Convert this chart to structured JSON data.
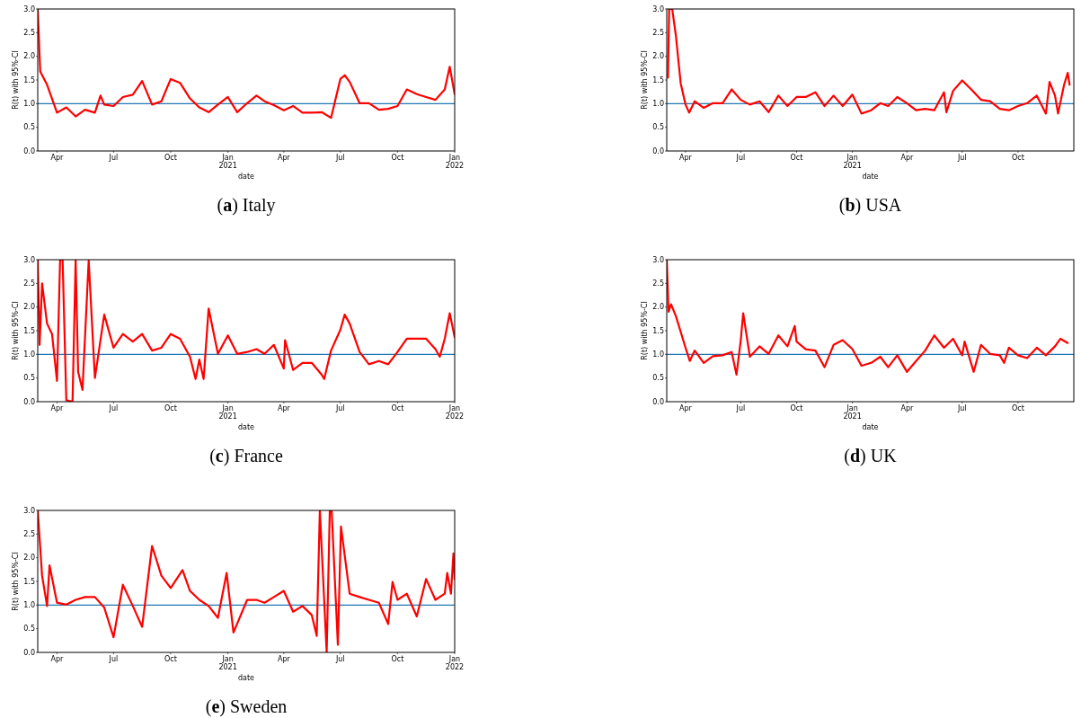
{
  "chart_data": [
    {
      "type": "line",
      "title": "(a) Italy",
      "xlabel": "date",
      "ylabel": "R(t) with 95%-CI",
      "xlim": [
        "2020-03-01",
        "2022-01-01"
      ],
      "ylim": [
        0,
        3
      ],
      "xticks": [
        {
          "value": "2020-04-01",
          "label": "Apr"
        },
        {
          "value": "2020-07-01",
          "label": "Jul"
        },
        {
          "value": "2020-10-01",
          "label": "Oct"
        },
        {
          "value": "2021-01-01",
          "label": "Jan\n2021"
        },
        {
          "value": "2021-04-01",
          "label": "Apr"
        },
        {
          "value": "2021-07-01",
          "label": "Jul"
        },
        {
          "value": "2021-10-01",
          "label": "Oct"
        },
        {
          "value": "2022-01-01",
          "label": "Jan\n2022"
        }
      ],
      "yticks": [
        {
          "value": 0,
          "label": "0.0"
        },
        {
          "value": 0.5,
          "label": "0.5"
        },
        {
          "value": 1,
          "label": "1.0"
        },
        {
          "value": 1.5,
          "label": "1.5"
        },
        {
          "value": 2,
          "label": "2.0"
        },
        {
          "value": 2.5,
          "label": "2.5"
        },
        {
          "value": 3,
          "label": "3.0"
        }
      ],
      "ref_lines": [
        {
          "axis": "y",
          "value": 1,
          "color": "#1f77b4"
        }
      ],
      "x": [
        "2020-03-01",
        "2020-03-05",
        "2020-03-16",
        "2020-04-01",
        "2020-04-16",
        "2020-05-01",
        "2020-05-16",
        "2020-06-01",
        "2020-06-10",
        "2020-06-16",
        "2020-07-01",
        "2020-07-16",
        "2020-08-01",
        "2020-08-16",
        "2020-09-01",
        "2020-09-16",
        "2020-10-01",
        "2020-10-16",
        "2020-11-01",
        "2020-11-16",
        "2020-12-01",
        "2020-12-16",
        "2021-01-01",
        "2021-01-16",
        "2021-02-01",
        "2021-02-16",
        "2021-03-01",
        "2021-03-16",
        "2021-04-01",
        "2021-04-16",
        "2021-05-01",
        "2021-05-16",
        "2021-06-01",
        "2021-06-16",
        "2021-07-01",
        "2021-07-08",
        "2021-07-16",
        "2021-08-01",
        "2021-08-16",
        "2021-09-01",
        "2021-09-16",
        "2021-10-01",
        "2021-10-16",
        "2021-11-01",
        "2021-11-16",
        "2021-12-01",
        "2021-12-16",
        "2021-12-24",
        "2022-01-01"
      ],
      "series": [
        {
          "color": "#ff0000",
          "values": [
            3.0,
            1.68,
            1.4,
            0.81,
            0.92,
            0.73,
            0.87,
            0.81,
            1.17,
            0.98,
            0.95,
            1.14,
            1.19,
            1.48,
            0.98,
            1.05,
            1.52,
            1.44,
            1.11,
            0.92,
            0.82,
            0.98,
            1.14,
            0.82,
            1.01,
            1.17,
            1.05,
            0.97,
            0.86,
            0.95,
            0.81,
            0.81,
            0.82,
            0.7,
            1.52,
            1.6,
            1.46,
            1.01,
            1.01,
            0.87,
            0.89,
            0.95,
            1.3,
            1.2,
            1.14,
            1.08,
            1.3,
            1.78,
            1.2
          ]
        }
      ]
    },
    {
      "type": "line",
      "title": "(b) USA",
      "xlabel": "date",
      "ylabel": "R(t) with 95%-CI",
      "xlim": [
        "2020-03-01",
        "2022-01-01"
      ],
      "ylim": [
        0,
        3
      ],
      "xticks": [
        {
          "value": "2020-04-01",
          "label": "Apr"
        },
        {
          "value": "2020-07-01",
          "label": "Jul"
        },
        {
          "value": "2020-10-01",
          "label": "Oct"
        },
        {
          "value": "2021-01-01",
          "label": "Jan\n2021"
        },
        {
          "value": "2021-04-01",
          "label": "Apr"
        },
        {
          "value": "2021-07-01",
          "label": "Jul"
        },
        {
          "value": "2021-10-01",
          "label": "Oct"
        }
      ],
      "yticks": [
        {
          "value": 0,
          "label": "0.0"
        },
        {
          "value": 0.5,
          "label": "0.5"
        },
        {
          "value": 1,
          "label": "1.0"
        },
        {
          "value": 1.5,
          "label": "1.5"
        },
        {
          "value": 2,
          "label": "2.0"
        },
        {
          "value": 2.5,
          "label": "2.5"
        },
        {
          "value": 3,
          "label": "3.0"
        }
      ],
      "ref_lines": [
        {
          "axis": "y",
          "value": 1,
          "color": "#1f77b4"
        }
      ],
      "x": [
        "2020-03-03",
        "2020-03-05",
        "2020-03-10",
        "2020-03-16",
        "2020-03-24",
        "2020-04-01",
        "2020-04-07",
        "2020-04-16",
        "2020-05-01",
        "2020-05-16",
        "2020-06-01",
        "2020-06-16",
        "2020-07-01",
        "2020-07-16",
        "2020-08-01",
        "2020-08-16",
        "2020-09-01",
        "2020-09-16",
        "2020-10-01",
        "2020-10-16",
        "2020-11-01",
        "2020-11-16",
        "2020-12-01",
        "2020-12-16",
        "2021-01-01",
        "2021-01-16",
        "2021-02-01",
        "2021-02-16",
        "2021-03-01",
        "2021-03-16",
        "2021-04-01",
        "2021-04-16",
        "2021-05-01",
        "2021-05-16",
        "2021-06-01",
        "2021-06-05",
        "2021-06-16",
        "2021-07-01",
        "2021-07-16",
        "2021-08-01",
        "2021-08-16",
        "2021-09-01",
        "2021-09-16",
        "2021-10-01",
        "2021-10-16",
        "2021-11-01",
        "2021-11-16",
        "2021-11-22",
        "2021-12-01",
        "2021-12-06",
        "2021-12-16",
        "2021-12-22",
        "2021-12-25"
      ],
      "series": [
        {
          "color": "#ff0000",
          "values": [
            1.55,
            3.0,
            3.0,
            2.44,
            1.43,
            0.98,
            0.81,
            1.05,
            0.91,
            1.01,
            1.01,
            1.3,
            1.08,
            0.98,
            1.05,
            0.82,
            1.17,
            0.95,
            1.14,
            1.14,
            1.24,
            0.95,
            1.17,
            0.95,
            1.19,
            0.79,
            0.86,
            1.01,
            0.95,
            1.14,
            1.01,
            0.86,
            0.89,
            0.86,
            1.24,
            0.82,
            1.27,
            1.49,
            1.3,
            1.08,
            1.05,
            0.89,
            0.86,
            0.95,
            1.01,
            1.17,
            0.79,
            1.46,
            1.17,
            0.79,
            1.4,
            1.65,
            1.4
          ]
        }
      ]
    },
    {
      "type": "line",
      "title": "(c) France",
      "xlabel": "date",
      "ylabel": "R(t) with 95%-CI",
      "xlim": [
        "2020-03-01",
        "2022-01-01"
      ],
      "ylim": [
        0,
        3
      ],
      "xticks": [
        {
          "value": "2020-04-01",
          "label": "Apr"
        },
        {
          "value": "2020-07-01",
          "label": "Jul"
        },
        {
          "value": "2020-10-01",
          "label": "Oct"
        },
        {
          "value": "2021-01-01",
          "label": "Jan\n2021"
        },
        {
          "value": "2021-04-01",
          "label": "Apr"
        },
        {
          "value": "2021-07-01",
          "label": "Jul"
        },
        {
          "value": "2021-10-01",
          "label": "Oct"
        },
        {
          "value": "2022-01-01",
          "label": "Jan\n2022"
        }
      ],
      "yticks": [
        {
          "value": 0,
          "label": "0.0"
        },
        {
          "value": 0.5,
          "label": "0.5"
        },
        {
          "value": 1,
          "label": "1.0"
        },
        {
          "value": 1.5,
          "label": "1.5"
        },
        {
          "value": 2,
          "label": "2.0"
        },
        {
          "value": 2.5,
          "label": "2.5"
        },
        {
          "value": 3,
          "label": "3.0"
        }
      ],
      "ref_lines": [
        {
          "axis": "y",
          "value": 1,
          "color": "#1f77b4"
        }
      ],
      "x": [
        "2020-03-01",
        "2020-03-04",
        "2020-03-08",
        "2020-03-16",
        "2020-03-24",
        "2020-04-01",
        "2020-04-06",
        "2020-04-10",
        "2020-04-16",
        "2020-04-26",
        "2020-05-01",
        "2020-05-05",
        "2020-05-12",
        "2020-05-22",
        "2020-06-01",
        "2020-06-16",
        "2020-07-01",
        "2020-07-16",
        "2020-08-01",
        "2020-08-16",
        "2020-09-01",
        "2020-09-16",
        "2020-10-01",
        "2020-10-16",
        "2020-11-01",
        "2020-11-10",
        "2020-11-16",
        "2020-11-23",
        "2020-12-01",
        "2020-12-16",
        "2021-01-01",
        "2021-01-16",
        "2021-02-01",
        "2021-02-16",
        "2021-03-01",
        "2021-03-16",
        "2021-04-01",
        "2021-04-03",
        "2021-04-16",
        "2021-05-01",
        "2021-05-16",
        "2021-06-01",
        "2021-06-05",
        "2021-06-16",
        "2021-07-01",
        "2021-07-08",
        "2021-07-16",
        "2021-08-01",
        "2021-08-16",
        "2021-09-01",
        "2021-09-16",
        "2021-10-01",
        "2021-10-16",
        "2021-11-01",
        "2021-11-16",
        "2021-12-01",
        "2021-12-08",
        "2021-12-16",
        "2021-12-24",
        "2022-01-01"
      ],
      "series": [
        {
          "color": "#ff0000",
          "values": [
            3.0,
            1.2,
            2.5,
            1.65,
            1.43,
            0.44,
            3.0,
            3.0,
            0.03,
            0.0,
            3.0,
            0.63,
            0.25,
            2.98,
            0.5,
            1.84,
            1.14,
            1.43,
            1.27,
            1.43,
            1.08,
            1.14,
            1.43,
            1.33,
            0.95,
            0.48,
            0.89,
            0.48,
            1.97,
            1.01,
            1.4,
            1.01,
            1.05,
            1.11,
            1.01,
            1.2,
            0.7,
            1.3,
            0.67,
            0.82,
            0.82,
            0.57,
            0.48,
            1.08,
            1.52,
            1.84,
            1.65,
            1.05,
            0.79,
            0.86,
            0.79,
            1.05,
            1.33,
            1.33,
            1.33,
            1.11,
            0.95,
            1.33,
            1.87,
            1.36
          ]
        }
      ]
    },
    {
      "type": "line",
      "title": "(d) UK",
      "xlabel": "date",
      "ylabel": "R(t) with 95%-CI",
      "xlim": [
        "2020-03-01",
        "2022-01-01"
      ],
      "ylim": [
        0,
        3
      ],
      "xticks": [
        {
          "value": "2020-04-01",
          "label": "Apr"
        },
        {
          "value": "2020-07-01",
          "label": "Jul"
        },
        {
          "value": "2020-10-01",
          "label": "Oct"
        },
        {
          "value": "2021-01-01",
          "label": "Jan\n2021"
        },
        {
          "value": "2021-04-01",
          "label": "Apr"
        },
        {
          "value": "2021-07-01",
          "label": "Jul"
        },
        {
          "value": "2021-10-01",
          "label": "Oct"
        }
      ],
      "yticks": [
        {
          "value": 0,
          "label": "0.0"
        },
        {
          "value": 0.5,
          "label": "0.5"
        },
        {
          "value": 1,
          "label": "1.0"
        },
        {
          "value": 1.5,
          "label": "1.5"
        },
        {
          "value": 2,
          "label": "2.0"
        },
        {
          "value": 2.5,
          "label": "2.5"
        },
        {
          "value": 3,
          "label": "3.0"
        }
      ],
      "ref_lines": [
        {
          "axis": "y",
          "value": 1,
          "color": "#1f77b4"
        }
      ],
      "x": [
        "2020-03-01",
        "2020-03-04",
        "2020-03-08",
        "2020-03-16",
        "2020-04-01",
        "2020-04-08",
        "2020-04-16",
        "2020-05-01",
        "2020-05-16",
        "2020-06-01",
        "2020-06-16",
        "2020-06-24",
        "2020-07-01",
        "2020-07-05",
        "2020-07-16",
        "2020-08-01",
        "2020-08-16",
        "2020-09-01",
        "2020-09-16",
        "2020-09-28",
        "2020-10-01",
        "2020-10-16",
        "2020-11-01",
        "2020-11-16",
        "2020-12-01",
        "2020-12-16",
        "2021-01-01",
        "2021-01-16",
        "2021-02-01",
        "2021-02-16",
        "2021-03-01",
        "2021-03-16",
        "2021-04-01",
        "2021-04-16",
        "2021-05-01",
        "2021-05-16",
        "2021-06-01",
        "2021-06-16",
        "2021-07-01",
        "2021-07-05",
        "2021-07-20",
        "2021-08-01",
        "2021-08-16",
        "2021-09-01",
        "2021-09-08",
        "2021-09-16",
        "2021-10-01",
        "2021-10-16",
        "2021-11-01",
        "2021-11-16",
        "2021-12-01",
        "2021-12-10",
        "2021-12-22"
      ],
      "series": [
        {
          "color": "#ff0000",
          "values": [
            3.0,
            1.9,
            2.06,
            1.81,
            1.14,
            0.86,
            1.08,
            0.82,
            0.96,
            0.98,
            1.05,
            0.57,
            1.3,
            1.87,
            0.95,
            1.17,
            1.01,
            1.4,
            1.17,
            1.6,
            1.27,
            1.11,
            1.08,
            0.73,
            1.2,
            1.3,
            1.11,
            0.76,
            0.82,
            0.95,
            0.73,
            0.98,
            0.63,
            0.86,
            1.08,
            1.4,
            1.14,
            1.33,
            0.98,
            1.27,
            0.63,
            1.2,
            1.01,
            0.98,
            0.82,
            1.14,
            0.98,
            0.92,
            1.14,
            0.98,
            1.17,
            1.33,
            1.24
          ]
        }
      ]
    },
    {
      "type": "line",
      "title": "(e) Sweden",
      "xlabel": "date",
      "ylabel": "R(t) with 95%-CI",
      "xlim": [
        "2020-03-01",
        "2022-01-01"
      ],
      "ylim": [
        0,
        3
      ],
      "xticks": [
        {
          "value": "2020-04-01",
          "label": "Apr"
        },
        {
          "value": "2020-07-01",
          "label": "Jul"
        },
        {
          "value": "2020-10-01",
          "label": "Oct"
        },
        {
          "value": "2021-01-01",
          "label": "Jan\n2021"
        },
        {
          "value": "2021-04-01",
          "label": "Apr"
        },
        {
          "value": "2021-07-01",
          "label": "Jul"
        },
        {
          "value": "2021-10-01",
          "label": "Oct"
        },
        {
          "value": "2022-01-01",
          "label": "Jan\n2022"
        }
      ],
      "yticks": [
        {
          "value": 0,
          "label": "0.0"
        },
        {
          "value": 0.5,
          "label": "0.5"
        },
        {
          "value": 1,
          "label": "1.0"
        },
        {
          "value": 1.5,
          "label": "1.5"
        },
        {
          "value": 2,
          "label": "2.0"
        },
        {
          "value": 2.5,
          "label": "2.5"
        },
        {
          "value": 3,
          "label": "3.0"
        }
      ],
      "ref_lines": [
        {
          "axis": "y",
          "value": 1,
          "color": "#1f77b4"
        }
      ],
      "x": [
        "2020-03-01",
        "2020-03-08",
        "2020-03-16",
        "2020-03-20",
        "2020-04-01",
        "2020-04-16",
        "2020-05-01",
        "2020-05-16",
        "2020-06-01",
        "2020-06-16",
        "2020-07-01",
        "2020-07-16",
        "2020-08-01",
        "2020-08-16",
        "2020-09-01",
        "2020-09-16",
        "2020-10-01",
        "2020-10-20",
        "2020-11-01",
        "2020-11-16",
        "2020-12-01",
        "2020-12-16",
        "2020-12-30",
        "2021-01-10",
        "2021-02-01",
        "2021-02-16",
        "2021-03-01",
        "2021-03-16",
        "2021-04-01",
        "2021-04-16",
        "2021-05-01",
        "2021-05-16",
        "2021-05-24",
        "2021-05-29",
        "2021-06-09",
        "2021-06-14",
        "2021-06-17",
        "2021-06-27",
        "2021-07-02",
        "2021-07-16",
        "2021-08-01",
        "2021-08-16",
        "2021-09-01",
        "2021-09-16",
        "2021-09-23",
        "2021-10-01",
        "2021-10-16",
        "2021-11-01",
        "2021-11-16",
        "2021-12-01",
        "2021-12-16",
        "2021-12-20",
        "2021-12-26",
        "2021-12-30",
        "2022-01-01"
      ],
      "series": [
        {
          "color": "#ff0000",
          "values": [
            3.0,
            1.62,
            0.98,
            1.84,
            1.05,
            1.01,
            1.11,
            1.17,
            1.17,
            0.95,
            0.32,
            1.43,
            0.98,
            0.54,
            2.25,
            1.62,
            1.36,
            1.74,
            1.3,
            1.11,
            0.98,
            0.73,
            1.68,
            0.42,
            1.11,
            1.11,
            1.05,
            1.17,
            1.3,
            0.86,
            0.98,
            0.79,
            0.35,
            3.0,
            0.0,
            3.0,
            3.0,
            0.16,
            2.66,
            1.24,
            1.17,
            1.11,
            1.05,
            0.6,
            1.49,
            1.11,
            1.24,
            0.76,
            1.55,
            1.11,
            1.24,
            1.68,
            1.24,
            2.09,
            1.55
          ]
        }
      ]
    }
  ]
}
